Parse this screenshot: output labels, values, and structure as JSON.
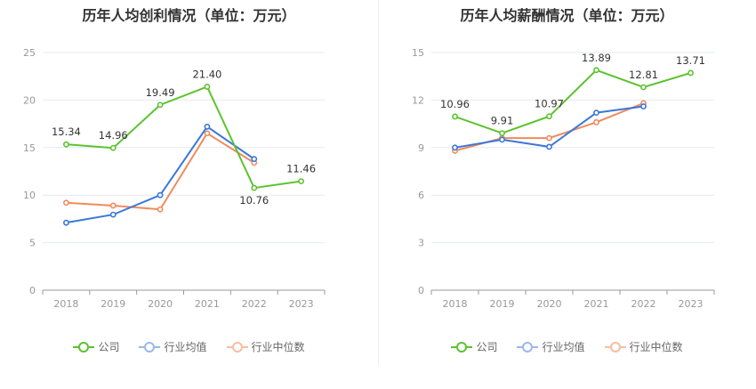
{
  "chart_data": [
    {
      "type": "line",
      "title": "历年人均创利情况（单位：万元）",
      "categories": [
        "2018",
        "2019",
        "2020",
        "2021",
        "2022",
        "2023"
      ],
      "ylim": [
        0,
        25
      ],
      "yticks": [
        0,
        5,
        10,
        15,
        20,
        25
      ],
      "grid": true,
      "legend_position": "bottom",
      "series": [
        {
          "name": "公司",
          "color": "#5cc32e",
          "values": [
            15.34,
            14.96,
            19.49,
            21.4,
            10.76,
            11.46
          ],
          "labels": [
            "15.34",
            "14.96",
            "19.49",
            "21.40",
            "10.76",
            "11.46"
          ]
        },
        {
          "name": "行业均值",
          "color": "#3b78d8",
          "values": [
            7.1,
            7.95,
            10.0,
            17.2,
            13.8,
            null
          ]
        },
        {
          "name": "行业中位数",
          "color": "#f08a5d",
          "values": [
            9.2,
            8.9,
            8.5,
            16.5,
            13.4,
            null
          ]
        }
      ]
    },
    {
      "type": "line",
      "title": "历年人均薪酬情况（单位：万元）",
      "categories": [
        "2018",
        "2019",
        "2020",
        "2021",
        "2022",
        "2023"
      ],
      "ylim": [
        0,
        15
      ],
      "yticks": [
        0,
        3,
        6,
        9,
        12,
        15
      ],
      "grid": true,
      "legend_position": "bottom",
      "series": [
        {
          "name": "公司",
          "color": "#5cc32e",
          "values": [
            10.96,
            9.91,
            10.97,
            13.89,
            12.81,
            13.71
          ],
          "labels": [
            "10.96",
            "9.91",
            "10.97",
            "13.89",
            "12.81",
            "13.71"
          ]
        },
        {
          "name": "行业均值",
          "color": "#3b78d8",
          "values": [
            9.0,
            9.5,
            9.05,
            11.2,
            11.6,
            null
          ]
        },
        {
          "name": "行业中位数",
          "color": "#f08a5d",
          "values": [
            8.8,
            9.6,
            9.6,
            10.6,
            11.8,
            null
          ]
        }
      ]
    }
  ]
}
